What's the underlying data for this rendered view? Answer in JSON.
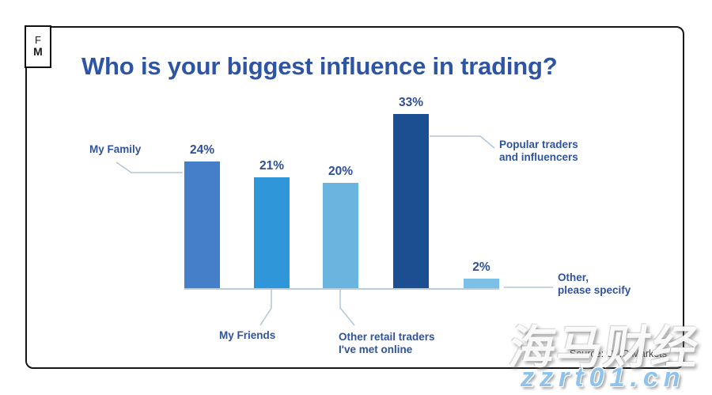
{
  "logo": {
    "line1": "F",
    "line2": "M"
  },
  "header": {
    "title": "Who is your biggest influence in trading?"
  },
  "chart_data": {
    "type": "bar",
    "title": "Who is your biggest influence in trading?",
    "categories": [
      "My Family",
      "My Friends",
      "Other retail traders I've met online",
      "Popular traders and influencers",
      "Other, please specify"
    ],
    "values": [
      24,
      21,
      20,
      33,
      2
    ],
    "value_labels": [
      "24%",
      "21%",
      "20%",
      "33%",
      "2%"
    ],
    "unit": "%",
    "xlabel": "",
    "ylabel": "",
    "ylim": [
      0,
      35
    ],
    "grid": false,
    "legend": "none",
    "bar_colors": [
      "#467fc9",
      "#2e96d9",
      "#69b5df",
      "#1c4e92",
      "#7cc0e8"
    ],
    "accent_text_color": "#2e54a4",
    "connector_color": "#b3c6d9"
  },
  "callouts": {
    "my_family": "My Family",
    "my_friends": "My Friends",
    "retail_l1": "Other retail traders",
    "retail_l2": "I've met online",
    "popular_l1": "Popular traders",
    "popular_l2": "and influencers",
    "other_l1": "Other,",
    "other_l2": "please specify"
  },
  "footer": {
    "source": "Source: CMC Markets"
  },
  "watermark": {
    "line1": "海马财经",
    "line2": "zzrt01.cn"
  }
}
